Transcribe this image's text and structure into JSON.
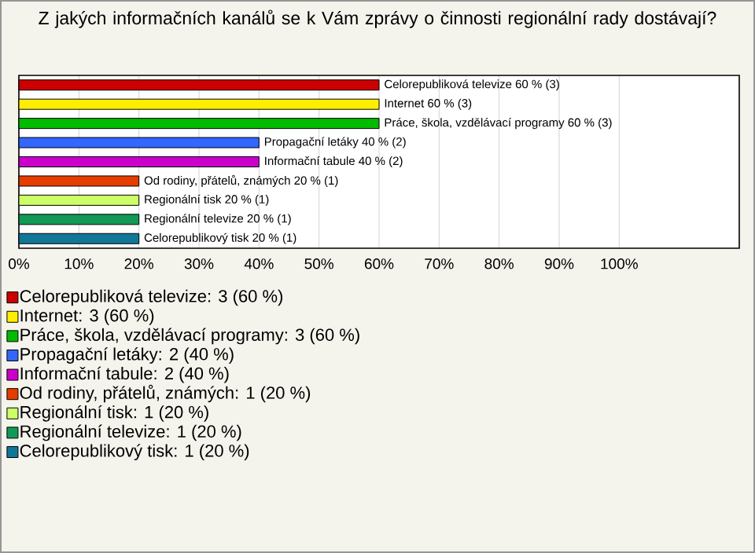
{
  "chart_data": {
    "type": "bar",
    "orientation": "horizontal",
    "title": "Z jakých informačních kanálů se k Vám zprávy o činnosti regionální rady dostávají?",
    "categories": [
      null,
      null,
      null,
      null,
      null,
      null,
      null,
      null,
      null
    ],
    "series": [
      {
        "name": "Celorepubliková televize: 3 (60 %)",
        "color": "#cc0000",
        "values": [
          60,
          null,
          null,
          null,
          null,
          null,
          null,
          null,
          null
        ],
        "value_labels": [
          "Celorepubliková televize 60 % (3)",
          null,
          null,
          null,
          null,
          null,
          null,
          null,
          null
        ]
      },
      {
        "name": "Internet: 3 (60 %)",
        "color": "#ffee00",
        "values": [
          null,
          60,
          null,
          null,
          null,
          null,
          null,
          null,
          null
        ],
        "value_labels": [
          null,
          "Internet 60 % (3)",
          null,
          null,
          null,
          null,
          null,
          null,
          null
        ]
      },
      {
        "name": "Práce, škola, vzdělávací programy: 3 (60 %)",
        "color": "#00bb00",
        "values": [
          null,
          null,
          60,
          null,
          null,
          null,
          null,
          null,
          null
        ],
        "value_labels": [
          null,
          null,
          "Práce, škola, vzdělávací programy 60 % (3)",
          null,
          null,
          null,
          null,
          null,
          null
        ]
      },
      {
        "name": "Propagační letáky: 2 (40 %)",
        "color": "#3366ff",
        "values": [
          null,
          null,
          null,
          40,
          null,
          null,
          null,
          null,
          null
        ],
        "value_labels": [
          null,
          null,
          null,
          "Propagační letáky 40 % (2)",
          null,
          null,
          null,
          null,
          null
        ]
      },
      {
        "name": "Informační tabule: 2 (40 %)",
        "color": "#cc00cc",
        "values": [
          null,
          null,
          null,
          null,
          40,
          null,
          null,
          null,
          null
        ],
        "value_labels": [
          null,
          null,
          null,
          null,
          "Informační tabule 40 % (2)",
          null,
          null,
          null,
          null
        ]
      },
      {
        "name": "Od rodiny, přátelů, známých: 1 (20 %)",
        "color": "#e63c00",
        "values": [
          null,
          null,
          null,
          null,
          null,
          20,
          null,
          null,
          null
        ],
        "value_labels": [
          null,
          null,
          null,
          null,
          null,
          "Od rodiny, přátelů, známých 20 % (1)",
          null,
          null,
          null
        ]
      },
      {
        "name": "Regionální tisk: 1 (20 %)",
        "color": "#ccff66",
        "values": [
          null,
          null,
          null,
          null,
          null,
          null,
          20,
          null,
          null
        ],
        "value_labels": [
          null,
          null,
          null,
          null,
          null,
          null,
          "Regionální tisk 20 % (1)",
          null,
          null
        ]
      },
      {
        "name": "Regionální televize: 1 (20 %)",
        "color": "#119955",
        "values": [
          null,
          null,
          null,
          null,
          null,
          null,
          null,
          20,
          null
        ],
        "value_labels": [
          null,
          null,
          null,
          null,
          null,
          null,
          null,
          "Regionální televize 20 % (1)",
          null
        ]
      },
      {
        "name": "Celorepublikový tisk: 1 (20 %)",
        "color": "#117799",
        "values": [
          null,
          null,
          null,
          null,
          null,
          null,
          null,
          null,
          20
        ],
        "value_labels": [
          null,
          null,
          null,
          null,
          null,
          null,
          null,
          null,
          "Celorepublikový tisk 20 % (1)"
        ]
      }
    ],
    "xlim": [
      0,
      120
    ],
    "xticks": [
      {
        "value": 0,
        "label": "0%"
      },
      {
        "value": 10,
        "label": "10%"
      },
      {
        "value": 20,
        "label": "20%"
      },
      {
        "value": 30,
        "label": "30%"
      },
      {
        "value": 40,
        "label": "40%"
      },
      {
        "value": 50,
        "label": "50%"
      },
      {
        "value": 60,
        "label": "60%"
      },
      {
        "value": 70,
        "label": "70%"
      },
      {
        "value": 80,
        "label": "80%"
      },
      {
        "value": 90,
        "label": "90%"
      },
      {
        "value": 100,
        "label": "100%"
      }
    ],
    "grid": "x",
    "legend": "bottom"
  }
}
